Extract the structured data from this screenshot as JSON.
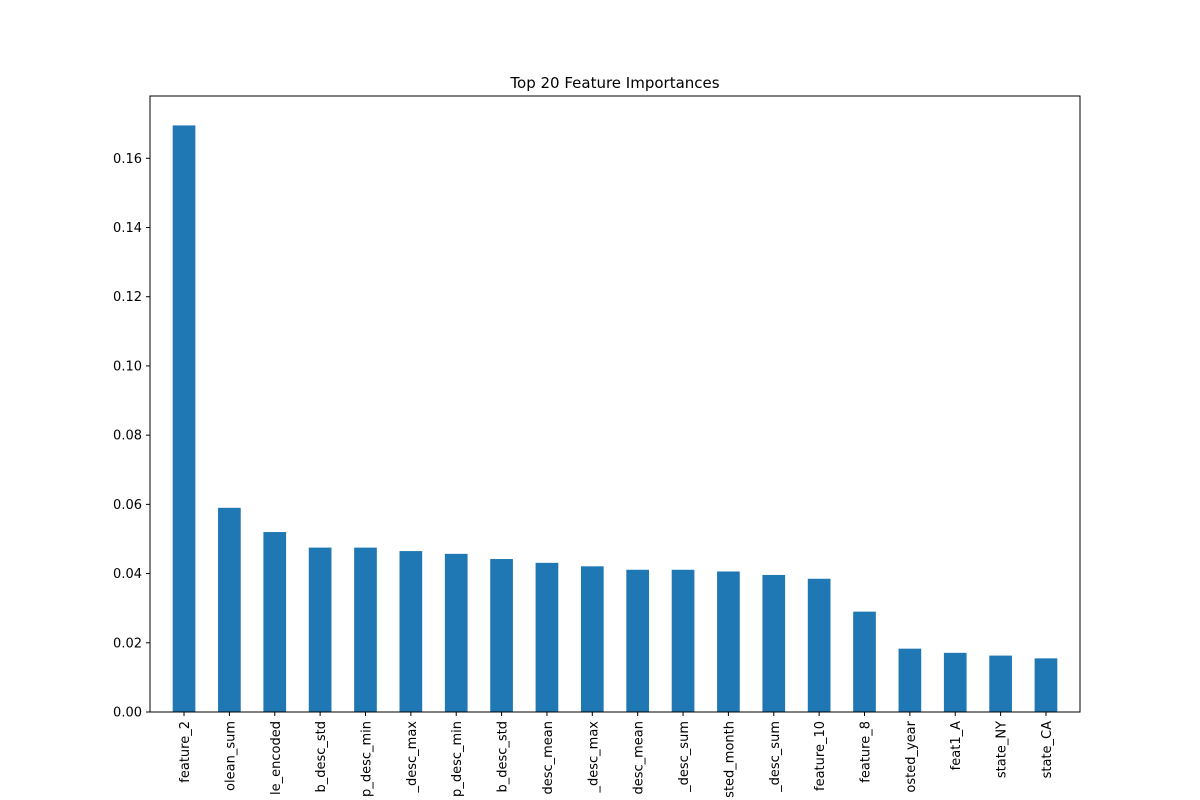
{
  "chart_data": {
    "type": "bar",
    "title": "Top 20 Feature Importances",
    "xlabel": "",
    "ylabel": "",
    "categories": [
      "feature_2",
      "olean_sum",
      "le_encoded",
      "b_desc_std",
      "p_desc_min",
      "_desc_max",
      "p_desc_min",
      "b_desc_std",
      "desc_mean",
      "_desc_max",
      "desc_mean",
      "_desc_sum",
      "sted_month",
      "_desc_sum",
      "feature_10",
      "feature_8",
      "osted_year",
      "feat1_A",
      "state_NY",
      "state_CA"
    ],
    "values": [
      0.1695,
      0.059,
      0.052,
      0.0475,
      0.0475,
      0.0465,
      0.0457,
      0.0442,
      0.0431,
      0.0421,
      0.0411,
      0.0411,
      0.0406,
      0.0396,
      0.0385,
      0.029,
      0.0183,
      0.0171,
      0.0163,
      0.0155
    ],
    "yticks": [
      "0.00",
      "0.02",
      "0.04",
      "0.06",
      "0.08",
      "0.10",
      "0.12",
      "0.14",
      "0.16"
    ],
    "ylim": [
      0,
      0.178
    ],
    "grid": false,
    "bar_color": "#1f77b4"
  }
}
